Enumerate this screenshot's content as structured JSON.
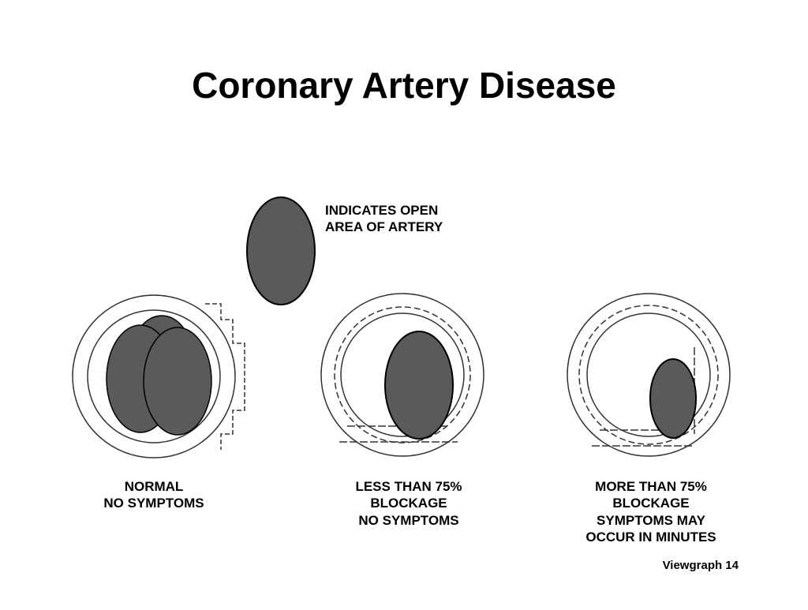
{
  "title": "Coronary Artery Disease",
  "legend": {
    "lines": [
      "INDICATES OPEN",
      "AREA OF ARTERY"
    ]
  },
  "panels": [
    {
      "lines": [
        "NORMAL",
        "NO SYMPTOMS"
      ]
    },
    {
      "lines": [
        "LESS THAN 75%",
        "BLOCKAGE",
        "NO SYMPTOMS"
      ]
    },
    {
      "lines": [
        "MORE THAN 75%",
        "BLOCKAGE",
        "SYMPTOMS MAY",
        "OCCUR IN MINUTES"
      ]
    }
  ],
  "footer": "Viewgraph 14"
}
